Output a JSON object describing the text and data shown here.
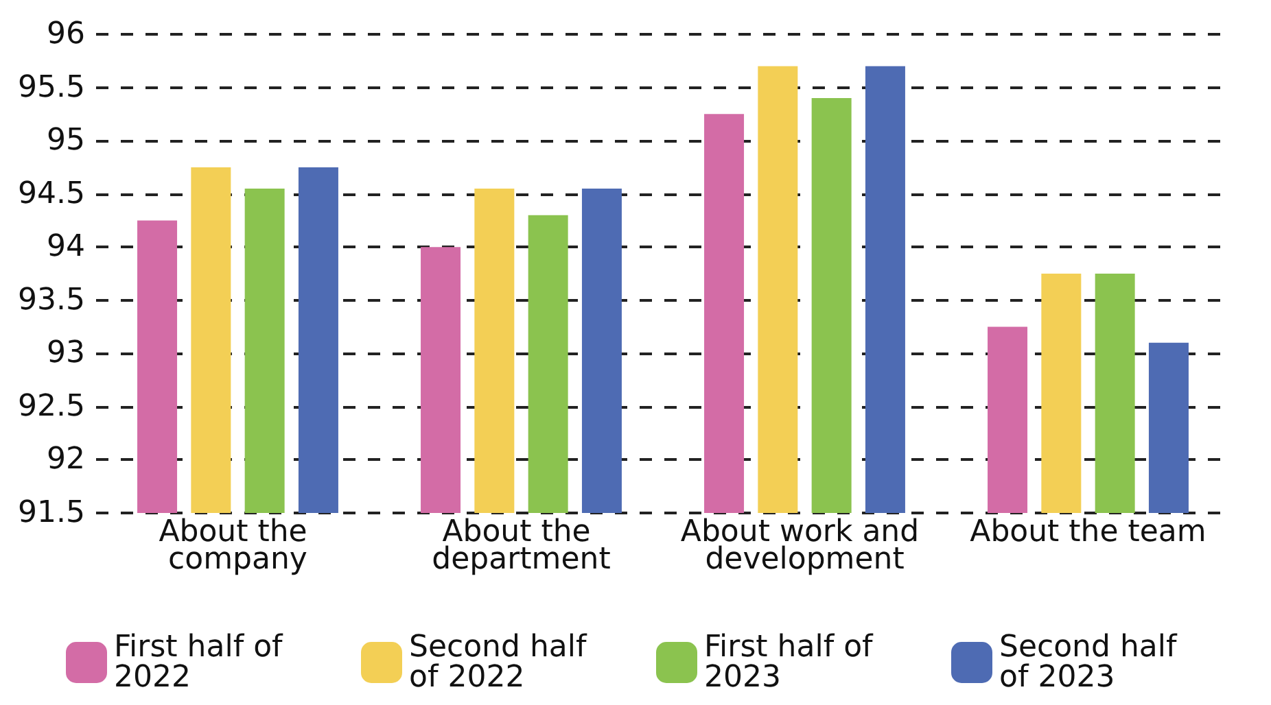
{
  "chart_data": {
    "type": "bar",
    "categories": [
      "About the company",
      "About the department",
      "About work and development",
      "About the team"
    ],
    "series": [
      {
        "name": "First half of 2022",
        "color": "#d36ca6",
        "values": [
          94.25,
          94.0,
          95.25,
          93.25
        ]
      },
      {
        "name": "Second half of 2022",
        "color": "#f3cf55",
        "values": [
          94.75,
          94.55,
          95.7,
          93.75
        ]
      },
      {
        "name": "First half of 2023",
        "color": "#8bc34f",
        "values": [
          94.55,
          94.3,
          95.4,
          93.75
        ]
      },
      {
        "name": "Second half of 2023",
        "color": "#4e6bb3",
        "values": [
          94.75,
          94.55,
          95.7,
          93.1
        ]
      }
    ],
    "ylim": [
      91.5,
      96
    ],
    "yticks": [
      91.5,
      92,
      92.5,
      93,
      93.5,
      94,
      94.5,
      95,
      95.5,
      96
    ],
    "grid": "y",
    "legend": "bottom"
  }
}
